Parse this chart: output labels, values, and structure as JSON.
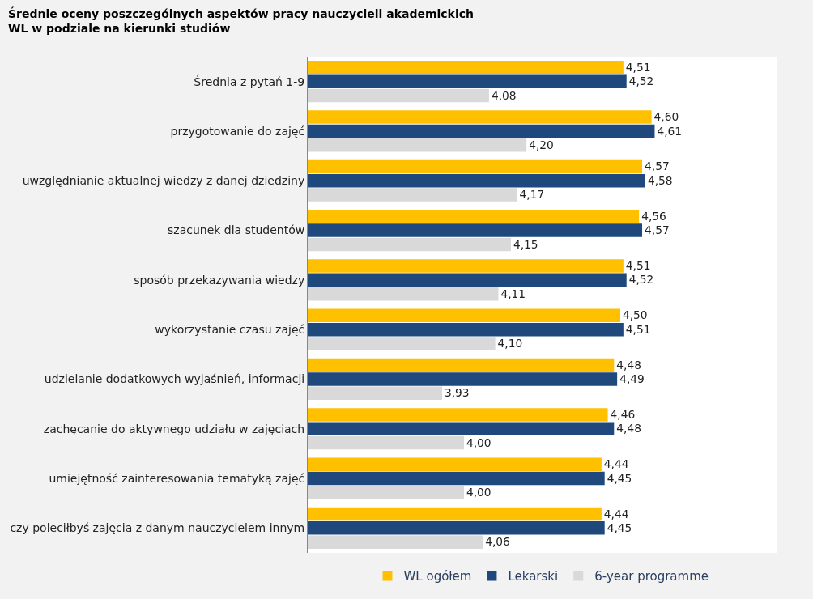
{
  "chart_data": {
    "type": "bar",
    "orientation": "horizontal",
    "title": "Średnie oceny poszczególnych aspektów pracy nauczycieli akademickich WL w podziale na kierunki studiów",
    "categories": [
      "Średnia z pytań 1-9",
      "przygotowanie do zajęć",
      "uwzględnianie aktualnej wiedzy z danej dziedziny",
      "szacunek dla studentów",
      "sposób przekazywania wiedzy",
      "wykorzystanie czasu zajęć",
      "udzielanie dodatkowych wyjaśnień, informacji",
      "zachęcanie do aktywnego udziału w zajęciach",
      "umiejętność zainteresowania tematyką zajęć",
      "czy poleciłbyś zajęcia z danym nauczycielem innym"
    ],
    "series": [
      {
        "name": "WL ogółem",
        "color": "#ffc000",
        "values": [
          4.51,
          4.6,
          4.57,
          4.56,
          4.51,
          4.5,
          4.48,
          4.46,
          4.44,
          4.44
        ],
        "value_labels": [
          "4,51",
          "4,60",
          "4,57",
          "4,56",
          "4,51",
          "4,50",
          "4,48",
          "4,46",
          "4,44",
          "4,44"
        ]
      },
      {
        "name": "Lekarski",
        "color": "#1f497d",
        "values": [
          4.52,
          4.61,
          4.58,
          4.57,
          4.52,
          4.51,
          4.49,
          4.48,
          4.45,
          4.45
        ],
        "value_labels": [
          "4,52",
          "4,61",
          "4,58",
          "4,57",
          "4,52",
          "4,51",
          "4,49",
          "4,48",
          "4,45",
          "4,45"
        ]
      },
      {
        "name": "6-year programme",
        "color": "#d9d9d9",
        "values": [
          4.08,
          4.2,
          4.17,
          4.15,
          4.11,
          4.1,
          3.93,
          4.0,
          4.0,
          4.06
        ],
        "value_labels": [
          "4,08",
          "4,20",
          "4,17",
          "4,15",
          "4,11",
          "4,10",
          "3,93",
          "4,00",
          "4,00",
          "4,06"
        ]
      }
    ],
    "xlim": [
      3.5,
      5.0
    ],
    "tick_labels": "y",
    "legend": "bottom"
  }
}
